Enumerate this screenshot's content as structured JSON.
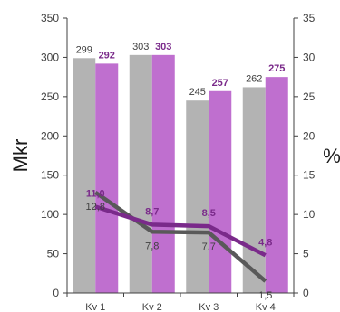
{
  "chart_data": {
    "type": "bar",
    "title": "",
    "categories": [
      "Kv 1",
      "Kv 2",
      "Kv 3",
      "Kv 4"
    ],
    "ylabel": "Mkr",
    "y2label": "%",
    "ylim": [
      0,
      350
    ],
    "y2lim": [
      0,
      35
    ],
    "yticks": [
      "0",
      "50",
      "100",
      "150",
      "200",
      "250",
      "300",
      "350"
    ],
    "y2ticks": [
      "0",
      "5",
      "10",
      "15",
      "20",
      "25",
      "30",
      "35"
    ],
    "grid": false,
    "bar_series": [
      {
        "values": [
          299,
          303,
          245,
          262
        ],
        "labels": [
          "299",
          "303",
          "245",
          "262"
        ],
        "color": "#b3b3b3",
        "label_color": "#404040",
        "bold": false
      },
      {
        "values": [
          292,
          303,
          257,
          275
        ],
        "labels": [
          "292",
          "303",
          "257",
          "275"
        ],
        "color": "#bf6fcf",
        "label_color": "#7a2a8a",
        "bold": true
      }
    ],
    "line_series": [
      {
        "values": [
          12.8,
          7.8,
          7.7,
          1.5
        ],
        "labels": [
          "12,8",
          "7,8",
          "7,7",
          "1,5"
        ],
        "color": "#595959",
        "label_color": "#404040",
        "bold": false
      },
      {
        "values": [
          11.0,
          8.7,
          8.5,
          4.8
        ],
        "labels": [
          "11,0",
          "8,7",
          "8,5",
          "4,8"
        ],
        "color": "#7a2a8a",
        "label_color": "#7a2a8a",
        "bold": true
      }
    ]
  }
}
